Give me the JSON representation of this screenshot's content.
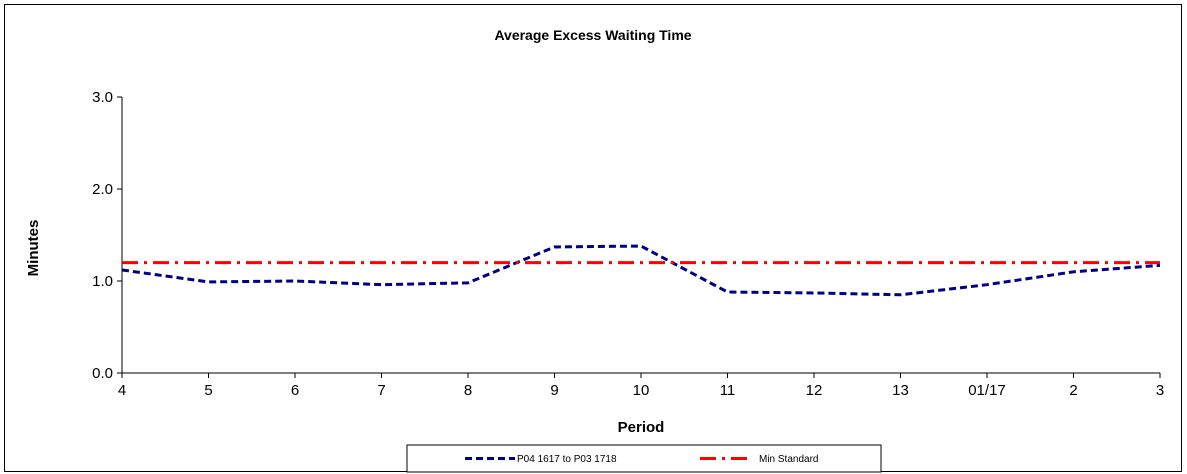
{
  "chart_data": {
    "type": "line",
    "title": "Average Excess Waiting Time",
    "xlabel": "Period",
    "ylabel": "Minutes",
    "categories": [
      "4",
      "5",
      "6",
      "7",
      "8",
      "9",
      "10",
      "11",
      "12",
      "13",
      "01/17",
      "2",
      "3"
    ],
    "y_ticks": [
      "0.0",
      "1.0",
      "2.0",
      "3.0"
    ],
    "ylim": [
      0,
      3
    ],
    "grid": false,
    "legend_position": "bottom",
    "series": [
      {
        "name": "P04 1617 to P03 1718",
        "color": "#000080",
        "style": "dashed",
        "values": [
          1.12,
          0.99,
          1.0,
          0.96,
          0.98,
          1.37,
          1.38,
          0.88,
          0.87,
          0.85,
          0.96,
          1.1,
          1.17
        ]
      },
      {
        "name": "Min Standard",
        "color": "#ff0000",
        "style": "dash-dot",
        "values": [
          1.2,
          1.2,
          1.2,
          1.2,
          1.2,
          1.2,
          1.2,
          1.2,
          1.2,
          1.2,
          1.2,
          1.2,
          1.2
        ]
      }
    ]
  }
}
